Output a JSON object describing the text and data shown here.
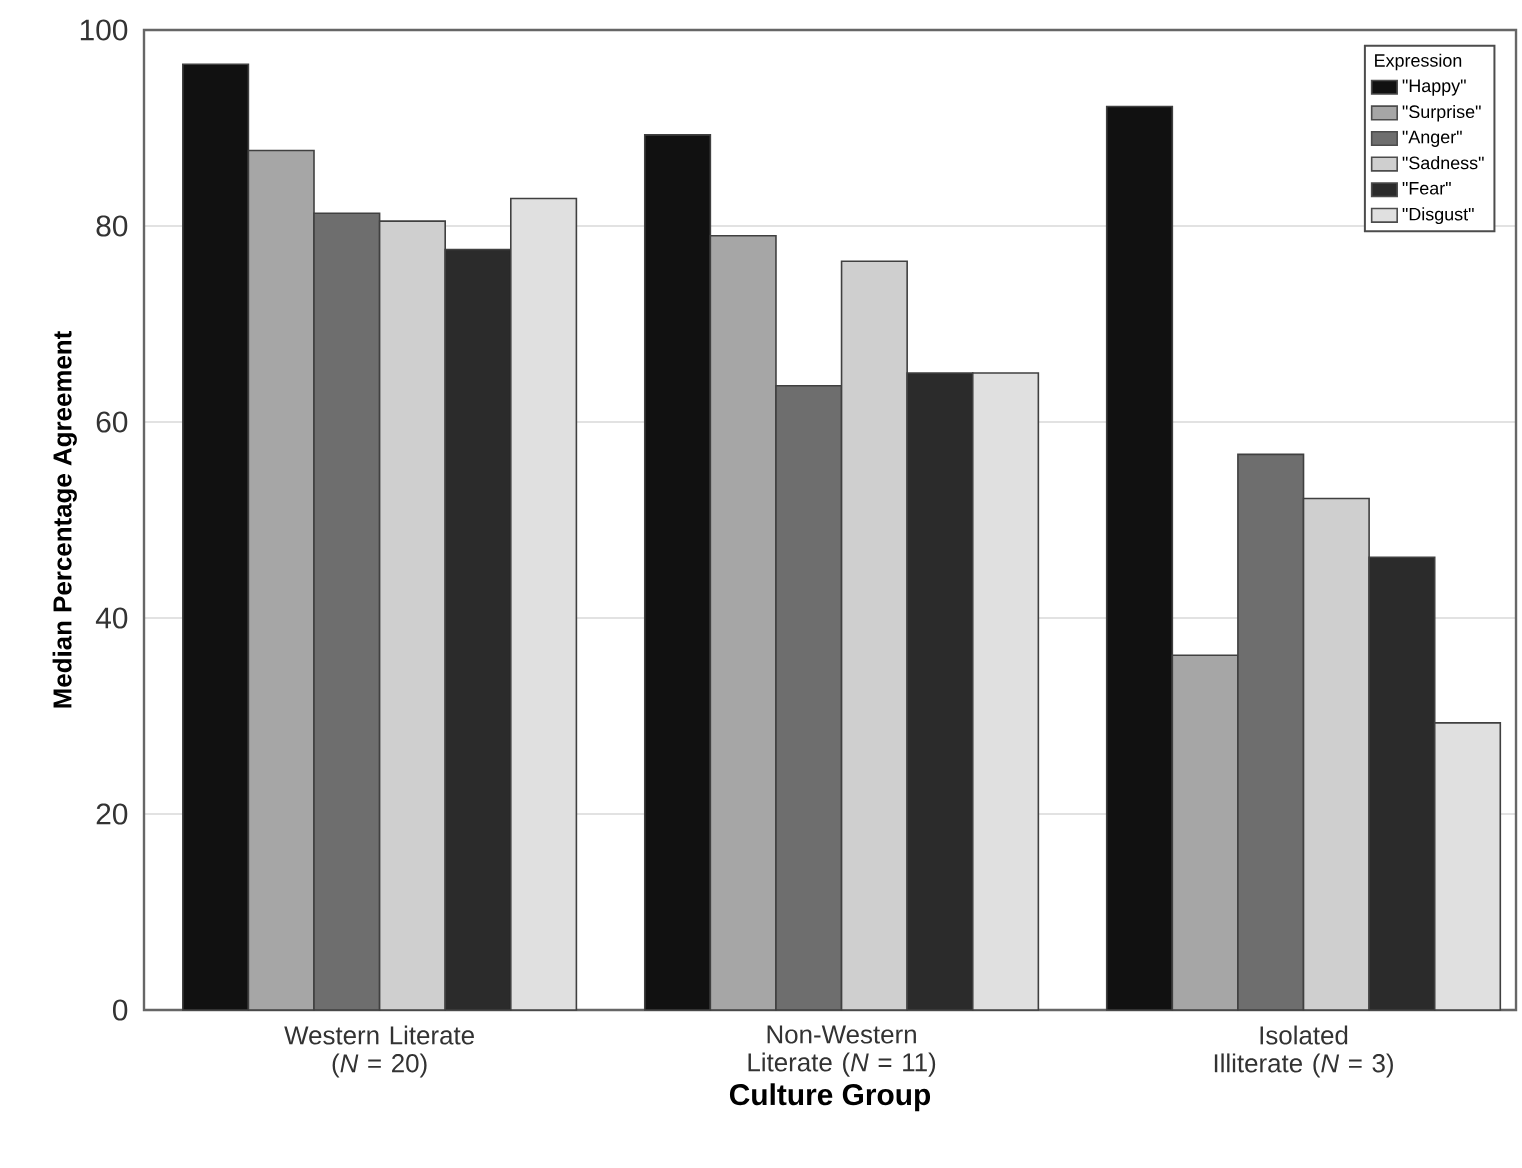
{
  "chart_data": {
    "type": "bar",
    "xlabel": "Culture Group",
    "ylabel": "Median Percentage Agreement",
    "legend_title": "Expression",
    "categories": [
      "Western Literate (*N* = 20)",
      "Non-Western Literate (*N* = 11)",
      "Isolated Illiterate (*N* = 3)"
    ],
    "series": [
      {
        "name": "\"Happy\"",
        "color": "#111111",
        "values": [
          96.5,
          89.3,
          92.2
        ]
      },
      {
        "name": "\"Surprise\"",
        "color": "#a6a6a6",
        "values": [
          87.7,
          79,
          36.2
        ]
      },
      {
        "name": "\"Anger\"",
        "color": "#6e6e6e",
        "values": [
          81.3,
          63.7,
          56.7
        ]
      },
      {
        "name": "\"Sadness\"",
        "color": "#cfcfcf",
        "values": [
          80.5,
          76.4,
          52.2
        ]
      },
      {
        "name": "\"Fear\"",
        "color": "#2b2b2b",
        "values": [
          77.6,
          65,
          46.2
        ]
      },
      {
        "name": "\"Disgust\"",
        "color": "#e0e0e0",
        "values": [
          82.8,
          65,
          29.3
        ]
      }
    ],
    "ylim": [
      0,
      100
    ],
    "yticks": [
      0,
      20,
      40,
      60,
      80,
      100
    ],
    "grid": "y",
    "legend": "top right"
  }
}
